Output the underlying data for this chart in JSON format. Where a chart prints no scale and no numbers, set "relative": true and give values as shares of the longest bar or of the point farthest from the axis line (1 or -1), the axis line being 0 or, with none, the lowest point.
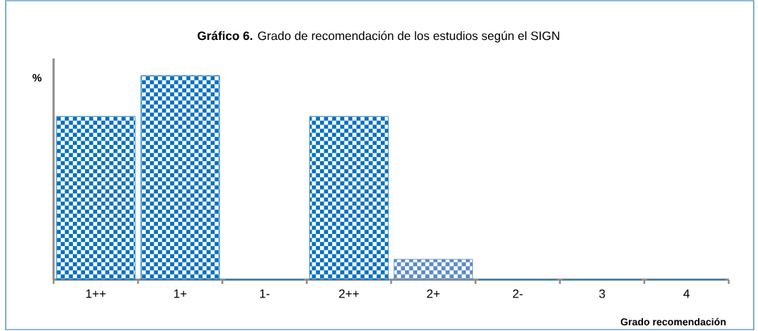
{
  "chart_data": {
    "type": "bar",
    "title": "**Gráfico 6.** Grado de recomendación de los estudios según el SIGN",
    "ylabel": "%",
    "xlabel": "Grado recomendación",
    "relative": true,
    "categories": [
      "1++",
      "1+",
      "1-",
      "2++",
      "2+",
      "2-",
      "3",
      "4"
    ],
    "values": [
      0.8,
      1,
      0,
      0.8,
      0.1,
      0,
      0,
      0
    ],
    "colors": [
      "#0070c0",
      "#0070c0",
      "#0070c0",
      "#0070c0",
      "#5a8ac6",
      "#0070c0",
      "#0070c0",
      "#0070c0"
    ],
    "grid": false
  }
}
